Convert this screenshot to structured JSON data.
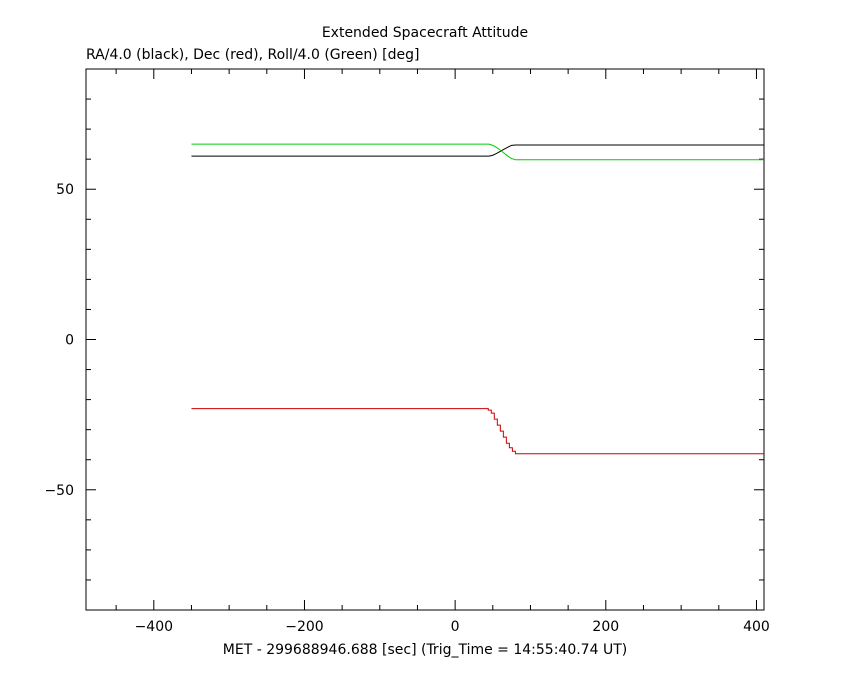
{
  "chart_data": {
    "type": "line",
    "title": "Extended Spacecraft Attitude",
    "subtitle": "RA/4.0 (black), Dec (red), Roll/4.0 (Green) [deg]",
    "xlabel": "MET - 299688946.688 [sec] (Trig_Time = 14:55:40.74 UT)",
    "ylabel": "",
    "xlim": [
      -490,
      410
    ],
    "ylim": [
      -90,
      90
    ],
    "x_major_ticks": [
      -400,
      -200,
      0,
      200,
      400
    ],
    "x_tick_labels": [
      "−400",
      "−200",
      "0",
      "200",
      "400"
    ],
    "x_minor_step": 50,
    "y_major_ticks": [
      -50,
      0,
      50
    ],
    "y_tick_labels": [
      "−50",
      "0",
      "50"
    ],
    "y_minor_step": 10,
    "grid": false,
    "legend": "none",
    "series": [
      {
        "color": "#000000",
        "x": [
          -350,
          45,
          50,
          55,
          60,
          65,
          70,
          75,
          80,
          410
        ],
        "y": [
          61,
          61,
          61.3,
          61.9,
          62.6,
          63.3,
          64.0,
          64.6,
          64.7,
          64.7
        ]
      },
      {
        "color": "#cc0000",
        "step": true,
        "x": [
          -350,
          44,
          48,
          52,
          56,
          60,
          64,
          68,
          72,
          76,
          80,
          410
        ],
        "y": [
          -23,
          -23.5,
          -24.5,
          -26.5,
          -28.5,
          -30.5,
          -32.5,
          -34.5,
          -36,
          -37.2,
          -38,
          -38
        ]
      },
      {
        "color": "#00cc00",
        "x": [
          -350,
          45,
          50,
          55,
          60,
          65,
          70,
          75,
          80,
          410
        ],
        "y": [
          65,
          65,
          64.6,
          63.9,
          63.0,
          62.0,
          61.0,
          60.2,
          59.8,
          59.8
        ]
      }
    ]
  }
}
